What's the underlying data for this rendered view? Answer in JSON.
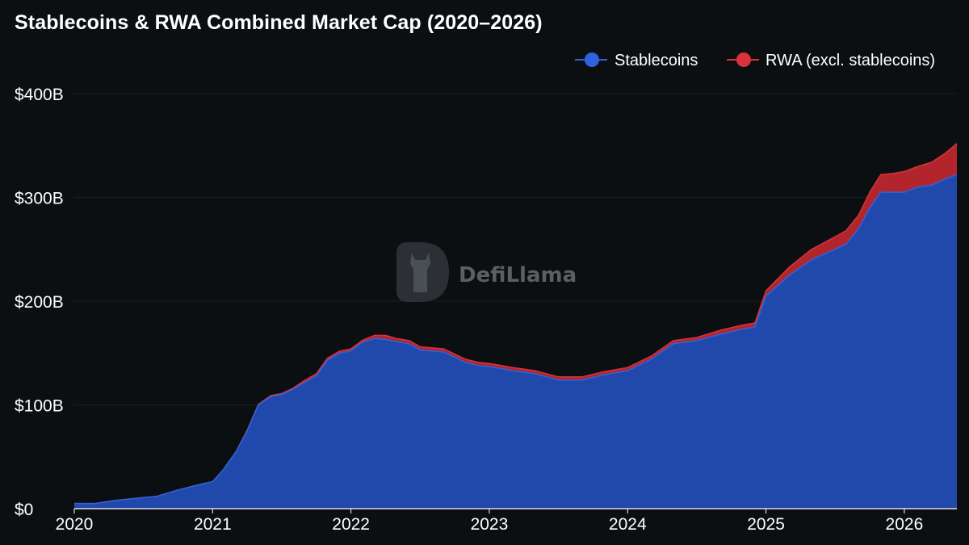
{
  "title": "Stablecoins & RWA Combined Market Cap (2020–2026)",
  "watermark": "DefiLlama",
  "colors": {
    "background": "#0b0f12",
    "stablecoins": "#2148ab",
    "stablecoins_line": "#2f63dd",
    "rwa": "#b3252d",
    "rwa_line": "#d8323a",
    "grid": "#1a1f23"
  },
  "chart_data": {
    "type": "area",
    "stacked": true,
    "x_unit": "year",
    "xlim": [
      2020,
      2026.38
    ],
    "ylim": [
      0,
      400
    ],
    "y_unit": "billion USD",
    "x_ticks": [
      {
        "v": 2020,
        "label": "2020"
      },
      {
        "v": 2021,
        "label": "2021"
      },
      {
        "v": 2022,
        "label": "2022"
      },
      {
        "v": 2023,
        "label": "2023"
      },
      {
        "v": 2024,
        "label": "2024"
      },
      {
        "v": 2025,
        "label": "2025"
      },
      {
        "v": 2026,
        "label": "2026"
      }
    ],
    "y_ticks": [
      {
        "v": 0,
        "label": "$0"
      },
      {
        "v": 100,
        "label": "$100B"
      },
      {
        "v": 200,
        "label": "$200B"
      },
      {
        "v": 300,
        "label": "$300B"
      },
      {
        "v": 400,
        "label": "$400B"
      }
    ],
    "legend_position": "top-right",
    "x": [
      2020.0,
      2020.15,
      2020.3,
      2020.45,
      2020.6,
      2020.75,
      2020.9,
      2021.0,
      2021.08,
      2021.17,
      2021.25,
      2021.33,
      2021.42,
      2021.5,
      2021.58,
      2021.67,
      2021.75,
      2021.83,
      2021.92,
      2022.0,
      2022.08,
      2022.17,
      2022.25,
      2022.33,
      2022.42,
      2022.5,
      2022.58,
      2022.67,
      2022.75,
      2022.83,
      2022.92,
      2023.0,
      2023.17,
      2023.33,
      2023.5,
      2023.67,
      2023.83,
      2024.0,
      2024.17,
      2024.33,
      2024.5,
      2024.67,
      2024.83,
      2024.92,
      2025.0,
      2025.17,
      2025.33,
      2025.5,
      2025.58,
      2025.67,
      2025.75,
      2025.83,
      2025.92,
      2026.0,
      2026.1,
      2026.2,
      2026.3,
      2026.38
    ],
    "series": [
      {
        "name": "Stablecoins",
        "values": [
          5,
          5,
          8,
          10,
          12,
          18,
          23,
          26,
          38,
          55,
          75,
          100,
          108,
          110,
          115,
          122,
          128,
          143,
          150,
          152,
          160,
          164,
          163,
          161,
          159,
          153,
          152,
          151,
          146,
          141,
          138,
          137,
          133,
          130,
          124,
          124,
          129,
          133,
          144,
          159,
          162,
          168,
          173,
          175,
          205,
          225,
          240,
          250,
          255,
          270,
          290,
          305,
          305,
          305,
          310,
          312,
          318,
          322
        ]
      },
      {
        "name": "RWA (excl. stablecoins)",
        "values": [
          0,
          0,
          0,
          0,
          0,
          0,
          0,
          0,
          0,
          0,
          0.5,
          0.5,
          1,
          1,
          1,
          2,
          2,
          2,
          2,
          2,
          2,
          3,
          4,
          3,
          3,
          3,
          3,
          3,
          3,
          3,
          3,
          3,
          3,
          3,
          3,
          3,
          3,
          3,
          3,
          3,
          3,
          4,
          4,
          4,
          5,
          8,
          10,
          12,
          13,
          13,
          15,
          17,
          18,
          20,
          20,
          22,
          25,
          30
        ]
      }
    ]
  }
}
